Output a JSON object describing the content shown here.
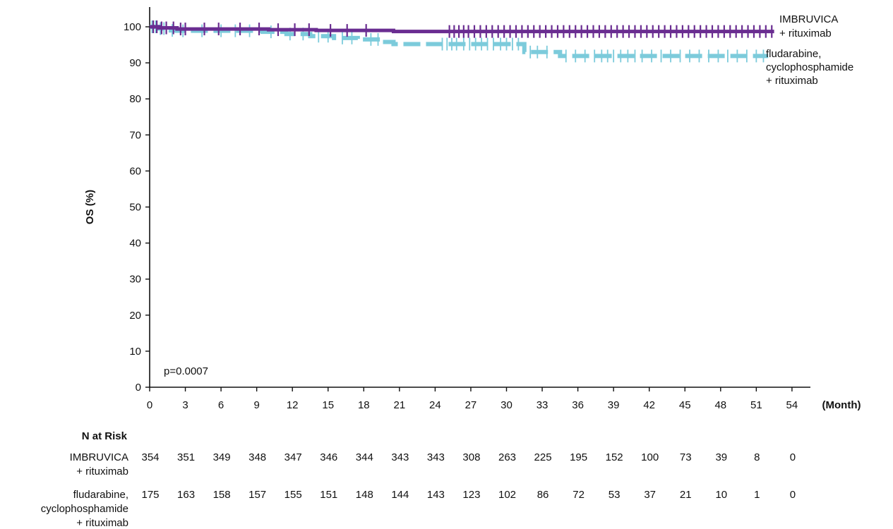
{
  "chart_data": {
    "type": "line",
    "ylabel": "OS (%)",
    "xlabel": "(Month)",
    "xlim": [
      0,
      55
    ],
    "ylim": [
      0,
      100
    ],
    "x_ticks": [
      0,
      3,
      6,
      9,
      12,
      15,
      18,
      21,
      24,
      27,
      30,
      33,
      36,
      39,
      42,
      45,
      48,
      51,
      54
    ],
    "y_ticks": [
      0,
      10,
      20,
      30,
      40,
      50,
      60,
      70,
      80,
      90,
      100
    ],
    "annotation": "p=0.0007",
    "series": [
      {
        "name": "IMBRUVICA\n+ rituximab",
        "color": "#6a2d91",
        "style": "solid",
        "x": [
          0,
          0.8,
          2.3,
          6,
          10,
          14,
          20.5,
          25,
          52.5
        ],
        "y": [
          100,
          99.7,
          99.4,
          99.4,
          99.2,
          99.0,
          98.7,
          98.7,
          98.7
        ],
        "censor_x": [
          0.3,
          0.6,
          1.0,
          1.4,
          2.0,
          2.6,
          3.0,
          4.6,
          5.8,
          7.6,
          9.2,
          10.8,
          12.2,
          13.4,
          15.2,
          16.6,
          18.2,
          25.2,
          25.6,
          26.0,
          26.4,
          26.8,
          27.3,
          27.8,
          28.3,
          28.8,
          29.3,
          29.8,
          30.3,
          30.8,
          31.3,
          31.8,
          32.3,
          32.8,
          33.3,
          33.8,
          34.3,
          34.8,
          35.3,
          35.8,
          36.3,
          36.8,
          37.3,
          37.8,
          38.3,
          38.8,
          39.3,
          39.8,
          40.3,
          40.8,
          41.3,
          41.8,
          42.3,
          42.8,
          43.3,
          43.8,
          44.3,
          44.8,
          45.3,
          45.8,
          46.3,
          46.8,
          47.3,
          47.8,
          48.3,
          48.8,
          49.3,
          49.8,
          50.3,
          50.8,
          51.3,
          51.8,
          52.3
        ]
      },
      {
        "name": "fludarabine,\ncyclophosphamide\n+ rituximab",
        "color": "#7ccbdb",
        "style": "dashed",
        "x": [
          0,
          0.8,
          1.5,
          2.3,
          5.5,
          9.5,
          11.5,
          13.5,
          15.5,
          17.5,
          19.5,
          20.5,
          24.5,
          26,
          31.5,
          33.3,
          34.5,
          52
        ],
        "y": [
          100,
          99.5,
          99.0,
          98.9,
          98.9,
          98.6,
          98.0,
          97.4,
          96.9,
          96.5,
          95.8,
          95.2,
          95.2,
          95.2,
          93.0,
          93.0,
          91.9,
          91.9
        ],
        "censor_x": [
          0.2,
          0.5,
          0.9,
          1.2,
          1.9,
          2.8,
          4.4,
          6.0,
          7.2,
          8.4,
          10.2,
          11.8,
          12.9,
          14.2,
          15.0,
          16.2,
          17.0,
          18.6,
          19.2,
          24.6,
          25.0,
          25.4,
          25.8,
          26.4,
          26.9,
          27.4,
          27.9,
          28.4,
          28.9,
          29.5,
          30.0,
          30.5,
          31.0,
          32.0,
          32.6,
          33.4,
          35.0,
          35.8,
          36.6,
          37.4,
          38.0,
          38.5,
          39.0,
          39.6,
          40.2,
          40.8,
          41.4,
          42.2,
          43.0,
          43.8,
          44.6,
          45.4,
          46.2,
          47.0,
          47.8,
          48.6,
          49.4,
          50.2,
          51.0,
          51.6
        ]
      }
    ],
    "at_risk": {
      "title": "N at Risk",
      "times": [
        0,
        3,
        6,
        9,
        12,
        15,
        18,
        21,
        24,
        27,
        30,
        33,
        36,
        39,
        42,
        45,
        48,
        51,
        54
      ],
      "rows": [
        {
          "label": "IMBRUVICA\n+ rituximab",
          "values": [
            354,
            351,
            349,
            348,
            347,
            346,
            344,
            343,
            343,
            308,
            263,
            225,
            195,
            152,
            100,
            73,
            39,
            8,
            0
          ]
        },
        {
          "label": "fludarabine,\ncyclophosphamide\n+ rituximab",
          "values": [
            175,
            163,
            158,
            157,
            155,
            151,
            148,
            144,
            143,
            123,
            102,
            86,
            72,
            53,
            37,
            21,
            10,
            1,
            0
          ]
        }
      ]
    }
  }
}
